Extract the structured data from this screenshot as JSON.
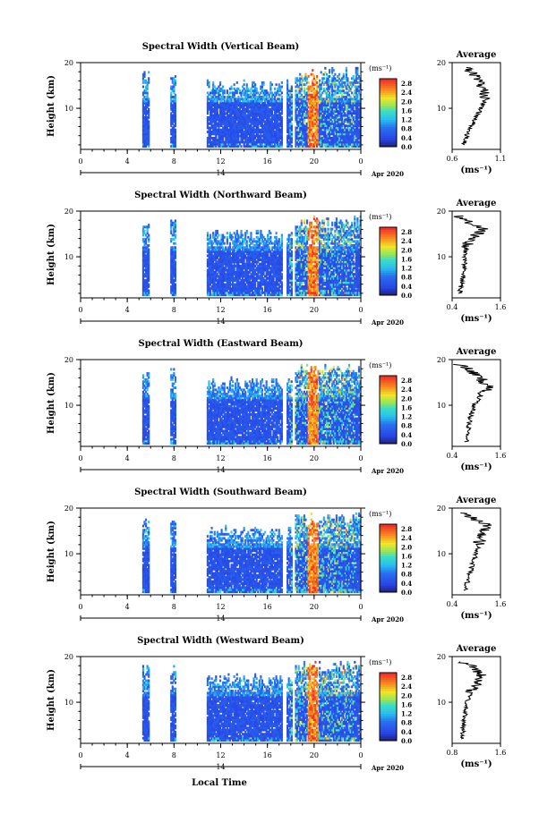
{
  "figure": {
    "xlabel": "Local Time",
    "date_label": "Apr 2020",
    "center_day_label": "14",
    "avg_title": "Average",
    "unit_label": "(ms⁻¹)",
    "ylabel": "Height (km)"
  },
  "chart_data": [
    {
      "type": "heatmap",
      "title": "Spectral Width (Vertical Beam)",
      "xlabel": "Local Time",
      "ylabel": "Height (km)",
      "x_ticks": [
        "0",
        "4",
        "8",
        "12",
        "16",
        "20",
        "0"
      ],
      "y_ticks": [
        "20",
        "10"
      ],
      "xlim": [
        0,
        24
      ],
      "ylim": [
        1,
        20
      ],
      "colorbar": {
        "label": "(ms⁻¹)",
        "ticks": [
          "2.8",
          "2.4",
          "2.0",
          "1.6",
          "1.2",
          "0.8",
          "0.4",
          "0.0"
        ],
        "range": [
          0,
          3.0
        ]
      },
      "data_gaps_hours": [
        [
          0,
          5.3
        ],
        [
          5.9,
          7.7
        ],
        [
          8.2,
          10.8
        ],
        [
          17.3,
          17.6
        ],
        [
          18.1,
          18.3
        ]
      ],
      "high_value_band_hours": [
        19.4,
        20.3
      ],
      "average_profile": {
        "title": "Average",
        "xlabel": "(ms⁻¹)",
        "x_ticks": [
          "0.6",
          "1.1"
        ],
        "xlim": [
          0.6,
          1.1
        ],
        "y_ticks": [
          "20",
          "10"
        ],
        "height_km": [
          2,
          4,
          6,
          8,
          10,
          12,
          14,
          16,
          18,
          19
        ],
        "value": [
          0.72,
          0.75,
          0.8,
          0.85,
          0.9,
          0.95,
          0.92,
          0.88,
          0.8,
          0.75
        ]
      }
    },
    {
      "type": "heatmap",
      "title": "Spectral Width (Northward Beam)",
      "xlabel": "Local Time",
      "ylabel": "Height (km)",
      "x_ticks": [
        "0",
        "4",
        "8",
        "12",
        "16",
        "20",
        "0"
      ],
      "y_ticks": [
        "20",
        "10"
      ],
      "xlim": [
        0,
        24
      ],
      "ylim": [
        1,
        20
      ],
      "colorbar": {
        "label": "(ms⁻¹)",
        "ticks": [
          "2.8",
          "2.4",
          "2.0",
          "1.6",
          "1.2",
          "0.8",
          "0.4",
          "0.0"
        ],
        "range": [
          0,
          3.0
        ]
      },
      "data_gaps_hours": [
        [
          0,
          5.3
        ],
        [
          5.9,
          7.7
        ],
        [
          8.2,
          10.8
        ],
        [
          17.3,
          17.6
        ],
        [
          18.1,
          18.3
        ]
      ],
      "high_value_band_hours": [
        19.4,
        20.3
      ],
      "average_profile": {
        "title": "Average",
        "xlabel": "(ms⁻¹)",
        "x_ticks": [
          "0.4",
          "1.6"
        ],
        "xlim": [
          0.4,
          1.6
        ],
        "y_ticks": [
          "20",
          "10"
        ],
        "height_km": [
          2,
          4,
          6,
          8,
          10,
          12,
          14,
          16,
          18,
          19
        ],
        "value": [
          0.6,
          0.62,
          0.68,
          0.7,
          0.72,
          0.75,
          0.85,
          1.2,
          0.7,
          0.55
        ]
      }
    },
    {
      "type": "heatmap",
      "title": "Spectral Width (Eastward Beam)",
      "xlabel": "Local Time",
      "ylabel": "Height (km)",
      "x_ticks": [
        "0",
        "4",
        "8",
        "12",
        "16",
        "20",
        "0"
      ],
      "y_ticks": [
        "20",
        "10"
      ],
      "xlim": [
        0,
        24
      ],
      "ylim": [
        1,
        20
      ],
      "colorbar": {
        "label": "(ms⁻¹)",
        "ticks": [
          "2.8",
          "2.4",
          "2.0",
          "1.6",
          "1.2",
          "0.8",
          "0.4",
          "0.0"
        ],
        "range": [
          0,
          3.0
        ]
      },
      "data_gaps_hours": [
        [
          0,
          5.3
        ],
        [
          5.9,
          7.7
        ],
        [
          8.2,
          10.8
        ],
        [
          17.3,
          17.6
        ],
        [
          18.1,
          18.3
        ]
      ],
      "high_value_band_hours": [
        19.4,
        20.3
      ],
      "average_profile": {
        "title": "Average",
        "xlabel": "(ms⁻¹)",
        "x_ticks": [
          "0.4",
          "1.6"
        ],
        "xlim": [
          0.4,
          1.6
        ],
        "y_ticks": [
          "20",
          "10"
        ],
        "height_km": [
          2,
          4,
          6,
          8,
          10,
          12,
          14,
          16,
          18,
          19
        ],
        "value": [
          0.75,
          0.78,
          0.82,
          0.88,
          0.95,
          1.1,
          1.3,
          1.1,
          0.8,
          0.55
        ]
      }
    },
    {
      "type": "heatmap",
      "title": "Spectral Width (Southward Beam)",
      "xlabel": "Local Time",
      "ylabel": "Height (km)",
      "x_ticks": [
        "0",
        "4",
        "8",
        "12",
        "16",
        "20",
        "0"
      ],
      "y_ticks": [
        "20",
        "10"
      ],
      "xlim": [
        0,
        24
      ],
      "ylim": [
        1,
        20
      ],
      "colorbar": {
        "label": "(ms⁻¹)",
        "ticks": [
          "2.8",
          "2.4",
          "2.0",
          "1.6",
          "1.2",
          "0.8",
          "0.4",
          "0.0"
        ],
        "range": [
          0,
          3.0
        ]
      },
      "data_gaps_hours": [
        [
          0,
          5.3
        ],
        [
          5.9,
          7.7
        ],
        [
          8.2,
          10.8
        ],
        [
          17.3,
          17.6
        ],
        [
          18.1,
          18.3
        ]
      ],
      "high_value_band_hours": [
        19.4,
        20.3
      ],
      "average_profile": {
        "title": "Average",
        "xlabel": "(ms⁻¹)",
        "x_ticks": [
          "0.4",
          "1.6"
        ],
        "xlim": [
          0.4,
          1.6
        ],
        "y_ticks": [
          "20",
          "10"
        ],
        "height_km": [
          2,
          4,
          6,
          8,
          10,
          12,
          14,
          16,
          18,
          19
        ],
        "value": [
          0.72,
          0.78,
          0.85,
          0.92,
          1.0,
          1.05,
          1.15,
          1.3,
          0.9,
          0.6
        ]
      }
    },
    {
      "type": "heatmap",
      "title": "Spectral Width (Westward Beam)",
      "xlabel": "Local Time",
      "ylabel": "Height (km)",
      "x_ticks": [
        "0",
        "4",
        "8",
        "12",
        "16",
        "20",
        "0"
      ],
      "y_ticks": [
        "20",
        "10"
      ],
      "xlim": [
        0,
        24
      ],
      "ylim": [
        1,
        20
      ],
      "colorbar": {
        "label": "(ms⁻¹)",
        "ticks": [
          "2.8",
          "2.4",
          "2.0",
          "1.6",
          "1.2",
          "0.8",
          "0.4",
          "0.0"
        ],
        "range": [
          0,
          3.0
        ]
      },
      "data_gaps_hours": [
        [
          0,
          5.3
        ],
        [
          5.9,
          7.7
        ],
        [
          8.2,
          10.8
        ],
        [
          17.3,
          17.6
        ],
        [
          18.1,
          18.3
        ]
      ],
      "high_value_band_hours": [
        19.4,
        20.3
      ],
      "average_profile": {
        "title": "Average",
        "xlabel": "(ms⁻¹)",
        "x_ticks": [
          "0.8",
          "1.6"
        ],
        "xlim": [
          0.8,
          1.6
        ],
        "y_ticks": [
          "20",
          "10"
        ],
        "height_km": [
          2,
          4,
          6,
          8,
          10,
          12,
          14,
          16,
          18,
          19
        ],
        "value": [
          0.95,
          0.98,
          1.0,
          1.02,
          1.05,
          1.1,
          1.2,
          1.3,
          1.1,
          0.9
        ]
      }
    }
  ]
}
